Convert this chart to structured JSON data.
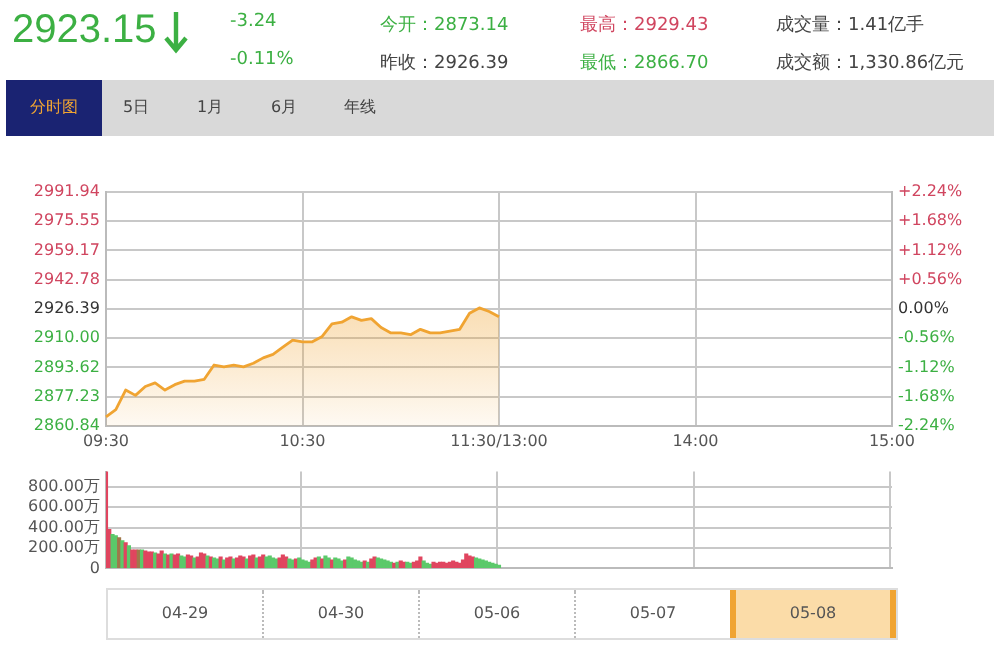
{
  "chart_data": [
    {
      "type": "other",
      "annotations": [
        "2923.15",
        "-3.24",
        "-0.11%",
        "今开：2873.14",
        "昨收：2926.39",
        "最高：2929.43",
        "最低：2866.70",
        "成交量：1.41亿手",
        "成交额：1,330.86亿元",
        "分时图",
        "5日",
        "1月",
        "6月",
        "年线"
      ]
    },
    {
      "type": "area",
      "categories": [
        "09:30",
        null,
        null,
        null,
        null,
        null,
        null,
        null,
        null,
        null,
        null,
        null,
        null,
        null,
        null,
        null,
        null,
        null,
        null,
        null,
        "10:30",
        null,
        null,
        null,
        null,
        null,
        null,
        null,
        null,
        null,
        null,
        null,
        null,
        null,
        null,
        null,
        null,
        null,
        null,
        null,
        "11:30/13:00",
        null,
        null,
        null,
        null,
        null,
        null,
        null,
        null,
        null,
        null,
        null,
        null,
        null,
        null,
        null,
        null,
        null,
        null,
        null,
        "14:00",
        null,
        null,
        null,
        null,
        null,
        null,
        null,
        null,
        null,
        null,
        null,
        null,
        null,
        null,
        null,
        null,
        null,
        null,
        null,
        "15:00"
      ],
      "series": [
        {
          "color": "#f0a432",
          "values": [
            2866,
            2870,
            2881,
            2878,
            2883,
            2885,
            2881,
            2884,
            2886,
            2886,
            2887,
            2895,
            2894,
            2895,
            2894,
            2896,
            2899,
            2901,
            2905,
            2909,
            2908,
            2908,
            2911,
            2918,
            2919,
            2922,
            2920,
            2921,
            2916,
            2913,
            2913,
            2912,
            2915,
            2913,
            2913,
            2914,
            2915,
            2924,
            2927,
            2925,
            2922,
            null,
            null,
            null,
            null,
            null,
            null,
            null,
            null,
            null,
            null,
            null,
            null,
            null,
            null,
            null,
            null,
            null,
            null,
            null,
            null,
            null,
            null,
            null,
            null,
            null,
            null,
            null,
            null,
            null,
            null,
            null,
            null,
            null,
            null,
            null,
            null,
            null,
            null,
            null,
            null
          ]
        }
      ],
      "ylim": [
        2860.84,
        2991.94
      ],
      "yticks": [
        2860.84,
        2877.23,
        2893.62,
        {
          "value": 2910,
          "label": "2910.00"
        },
        2926.39,
        2942.78,
        2959.17,
        2975.55,
        2991.94
      ],
      "y2lim": [
        -2.24,
        2.24
      ],
      "y2ticks": [
        {
          "value": -2.24,
          "label": "-2.24%"
        },
        {
          "value": -1.68,
          "label": "-1.68%"
        },
        {
          "value": -1.12,
          "label": "-1.12%"
        },
        {
          "value": -0.56,
          "label": "-0.56%"
        },
        {
          "value": 0,
          "label": "0.00%"
        },
        {
          "value": 0.56,
          "label": "+0.56%"
        },
        {
          "value": 1.12,
          "label": "+1.12%"
        },
        {
          "value": 1.68,
          "label": "+1.68%"
        },
        {
          "value": 2.24,
          "label": "+2.24%"
        }
      ],
      "grid": true,
      "legend": false
    },
    {
      "type": "bar",
      "categories": [
        null,
        null,
        null,
        null,
        null,
        null,
        null,
        null,
        null,
        null,
        null,
        null,
        null,
        null,
        null,
        null,
        null,
        null,
        null,
        null,
        null,
        null,
        null,
        null,
        null,
        null,
        null,
        null,
        null,
        null,
        null,
        null,
        null,
        null,
        null,
        null,
        null,
        null,
        null,
        null,
        null,
        null,
        null,
        null,
        null,
        null,
        null,
        null,
        null,
        null,
        null,
        null,
        null,
        null,
        null,
        null,
        null,
        null,
        null,
        null,
        null,
        null,
        null,
        null,
        null,
        null,
        null,
        null,
        null,
        null,
        null,
        null,
        null,
        null,
        null,
        null,
        null,
        null,
        null,
        null,
        null,
        null,
        null,
        null,
        null,
        null,
        null,
        null,
        null,
        null,
        null,
        null,
        null,
        null,
        null,
        null,
        null,
        null,
        null,
        null,
        null,
        null,
        null,
        null,
        null,
        null,
        null,
        null,
        null,
        null,
        null,
        null,
        null,
        null,
        null,
        null,
        null,
        null,
        null,
        null,
        null,
        null,
        null,
        null,
        null,
        null,
        null,
        null,
        null,
        null,
        null,
        null,
        null,
        null,
        null,
        null,
        null,
        null,
        null,
        null,
        null,
        null,
        null,
        null,
        null,
        null,
        null,
        null,
        null,
        null,
        null,
        null,
        null,
        null,
        null,
        null,
        null,
        null,
        null,
        null,
        null,
        null,
        null,
        null,
        null,
        null,
        null,
        null,
        null,
        null,
        null,
        null,
        null,
        null,
        null,
        null,
        null,
        null,
        null,
        null,
        null,
        null,
        null,
        null,
        null,
        null,
        null,
        null,
        null,
        null,
        null,
        null,
        null,
        null,
        null,
        null,
        null,
        null,
        null,
        null,
        null,
        null,
        null,
        null,
        null,
        null,
        null,
        null,
        null,
        null,
        null,
        null,
        null,
        null,
        null,
        null,
        null,
        null,
        null,
        null,
        null,
        null,
        null,
        null,
        null,
        null,
        null,
        null,
        null,
        null,
        null,
        null,
        null,
        null,
        null,
        null,
        null,
        null,
        null,
        null,
        null
      ],
      "values": [
        950,
        380,
        330,
        320,
        300,
        270,
        250,
        220,
        180,
        180,
        180,
        180,
        170,
        160,
        160,
        150,
        140,
        170,
        140,
        130,
        140,
        130,
        140,
        120,
        110,
        130,
        120,
        100,
        110,
        150,
        140,
        120,
        110,
        100,
        90,
        110,
        80,
        100,
        110,
        90,
        100,
        120,
        110,
        90,
        120,
        130,
        100,
        110,
        130,
        110,
        120,
        100,
        90,
        100,
        130,
        110,
        90,
        80,
        90,
        100,
        80,
        70,
        60,
        80,
        100,
        110,
        90,
        120,
        100,
        80,
        100,
        90,
        70,
        80,
        110,
        100,
        80,
        70,
        60,
        70,
        60,
        90,
        110,
        100,
        90,
        80,
        70,
        60,
        50,
        60,
        70,
        60,
        60,
        50,
        60,
        70,
        110,
        70,
        50,
        40,
        60,
        50,
        60,
        60,
        50,
        60,
        70,
        60,
        50,
        80,
        140,
        120,
        110,
        100,
        90,
        80,
        70,
        60,
        50,
        40,
        30,
        null,
        null,
        null,
        null,
        null,
        null,
        null,
        null,
        null,
        null,
        null,
        null,
        null,
        null,
        null,
        null,
        null,
        null,
        null,
        null,
        null,
        null,
        null,
        null,
        null,
        null,
        null,
        null,
        null,
        null,
        null,
        null,
        null,
        null,
        null,
        null,
        null,
        null,
        null,
        null,
        null,
        null,
        null,
        null,
        null,
        null,
        null,
        null,
        null,
        null,
        null,
        null,
        null,
        null,
        null,
        null,
        null,
        null,
        null,
        null,
        null,
        null,
        null,
        null,
        null,
        null,
        null,
        null,
        null,
        null,
        null,
        null,
        null,
        null,
        null,
        null,
        null,
        null,
        null,
        null,
        null,
        null,
        null,
        null,
        null,
        null,
        null,
        null,
        null,
        null,
        null,
        null,
        null,
        null,
        null,
        null,
        null,
        null,
        null,
        null,
        null,
        null,
        null,
        null,
        null,
        null,
        null,
        null,
        null,
        null,
        null,
        null,
        null,
        null,
        null,
        null,
        null,
        null,
        null,
        null
      ],
      "colors": [
        "#e0455f",
        "#e0455f",
        "#5bc96a",
        "#5bc96a",
        "#a0784a",
        "#5bc96a",
        "#e0455f",
        "#5bc96a",
        "#e0455f",
        "#e0455f",
        "#a0784a",
        "#5bc96a",
        "#e0455f",
        "#e0455f",
        "#e0455f",
        "#5bc96a",
        "#e0455f",
        "#e0455f",
        "#5bc96a",
        "#e0455f",
        "#5bc96a",
        "#e0455f",
        "#e0455f",
        "#5bc96a",
        "#5bc96a",
        "#e0455f",
        "#e0455f",
        "#5bc96a",
        "#e0455f",
        "#e0455f",
        "#e0455f",
        "#5bc96a",
        "#e0455f",
        "#5bc96a",
        "#5bc96a",
        "#e0455f",
        "#5bc96a",
        "#e0455f",
        "#e0455f",
        "#5bc96a",
        "#e0455f",
        "#e0455f",
        "#e0455f",
        "#5bc96a",
        "#e0455f",
        "#e0455f",
        "#5bc96a",
        "#e0455f",
        "#e0455f",
        "#5bc96a",
        "#5bc96a",
        "#5bc96a",
        "#5bc96a",
        "#e0455f",
        "#e0455f",
        "#e0455f",
        "#5bc96a",
        "#5bc96a",
        "#e0455f",
        "#5bc96a",
        "#5bc96a",
        "#5bc96a",
        "#5bc96a",
        "#e0455f",
        "#e0455f",
        "#5bc96a",
        "#e0455f",
        "#5bc96a",
        "#5bc96a",
        "#e0455f",
        "#5bc96a",
        "#5bc96a",
        "#5bc96a",
        "#e0455f",
        "#5bc96a",
        "#5bc96a",
        "#5bc96a",
        "#5bc96a",
        "#5bc96a",
        "#e0455f",
        "#5bc96a",
        "#e0455f",
        "#e0455f",
        "#5bc96a",
        "#5bc96a",
        "#5bc96a",
        "#5bc96a",
        "#5bc96a",
        "#e0455f",
        "#5bc96a",
        "#e0455f",
        "#e0455f",
        "#5bc96a",
        "#5bc96a",
        "#e0455f",
        "#e0455f",
        "#e0455f",
        "#5bc96a",
        "#5bc96a",
        "#5bc96a",
        "#e0455f",
        "#e0455f",
        "#e0455f",
        "#e0455f",
        "#e0455f",
        "#e0455f",
        "#e0455f",
        "#e0455f",
        "#e0455f",
        "#e0455f",
        "#e0455f",
        "#e0455f",
        "#e0455f",
        "#5bc96a",
        "#5bc96a",
        "#5bc96a",
        "#5bc96a",
        "#5bc96a",
        "#5bc96a",
        "#5bc96a",
        "#5bc96a",
        null,
        null,
        null,
        null,
        null,
        null,
        null,
        null,
        null,
        null,
        null,
        null,
        null,
        null,
        null,
        null,
        null,
        null,
        null,
        null,
        null,
        null,
        null,
        null,
        null,
        null,
        null,
        null,
        null,
        null,
        null,
        null,
        null,
        null,
        null,
        null,
        null,
        null,
        null,
        null,
        null,
        null,
        null,
        null,
        null,
        null,
        null,
        null,
        null,
        null,
        null,
        null,
        null,
        null,
        null,
        null,
        null,
        null,
        null,
        null,
        null,
        null,
        null,
        null,
        null,
        null,
        null,
        null,
        null,
        null,
        null,
        null,
        null,
        null,
        null,
        null,
        null,
        null,
        null,
        null,
        null,
        null,
        null,
        null,
        null,
        null,
        null,
        null,
        null,
        null,
        null,
        null,
        null,
        null,
        null,
        null,
        null,
        null,
        null,
        null,
        null,
        null,
        null,
        null,
        null,
        null,
        null,
        null,
        null,
        null,
        null,
        null,
        null,
        null,
        null,
        null,
        null,
        null,
        null,
        null
      ],
      "ylim": [
        0,
        950
      ],
      "yticks": [
        0,
        {
          "value": 200,
          "label": "200.00万"
        },
        {
          "value": 400,
          "label": "400.00万"
        },
        {
          "value": 600,
          "label": "600.00万"
        },
        {
          "value": 800,
          "label": "800.00万"
        }
      ],
      "tick_labels": "y",
      "grid": true,
      "legend": false
    },
    {
      "type": "other",
      "annotations": [
        "04-29",
        "04-30",
        "05-06",
        "05-07",
        "05-08"
      ]
    }
  ]
}
